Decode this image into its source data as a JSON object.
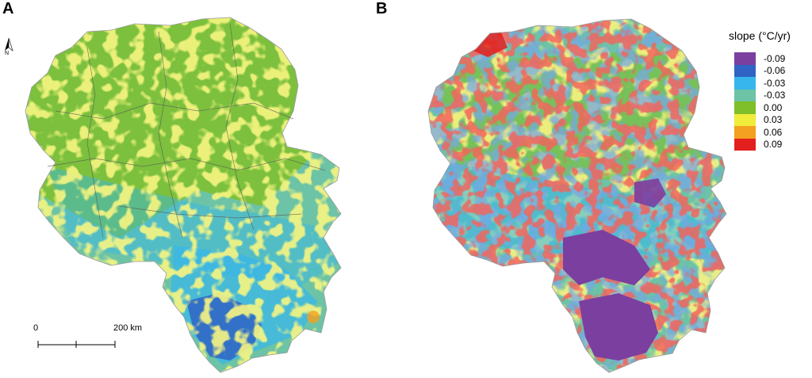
{
  "panels": {
    "a": "A",
    "b": "B"
  },
  "north_label": "N",
  "scale_bar": {
    "start": "0",
    "end": "200 km"
  },
  "legend": {
    "title": "slope (°C/yr)",
    "items": [
      {
        "label": "-0.09",
        "color": "#7b3fa0"
      },
      {
        "label": "-0.06",
        "color": "#2f64c4"
      },
      {
        "label": "-0.03",
        "color": "#36b6ec"
      },
      {
        "label": "-0.03",
        "color": "#6cc3a6"
      },
      {
        "label": "0.00",
        "color": "#7fbf2a"
      },
      {
        "label": "0.03",
        "color": "#f0ec3a"
      },
      {
        "label": "0.06",
        "color": "#f4a020"
      },
      {
        "label": "0.09",
        "color": "#e3201d"
      }
    ]
  }
}
